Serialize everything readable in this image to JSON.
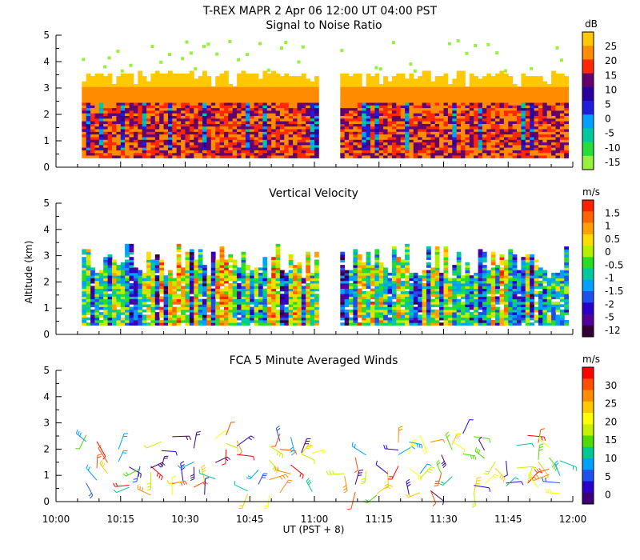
{
  "chart_data": {
    "title": "T-REX  MAPR  2 Apr 06  12:00 UT  04:00  PST",
    "xlabel": "UT  (PST + 8)",
    "x_ticks": [
      "10:00",
      "10:15",
      "10:30",
      "10:45",
      "11:00",
      "11:15",
      "11:30",
      "11:45",
      "12:00"
    ],
    "x_range_minutes": [
      0,
      120
    ],
    "data_gap_minutes": [
      61,
      66
    ],
    "panels": [
      {
        "type": "heatmap",
        "title": "Signal to Noise Ratio",
        "ylabel": "",
        "y_ticks": [
          "0",
          "1",
          "2",
          "3",
          "4",
          "5"
        ],
        "ylim": [
          0,
          5
        ],
        "colorbar_unit": "dB",
        "colorbar_labels": [
          "25",
          "20",
          "15",
          "10",
          "5",
          "0",
          "-5",
          "-10",
          "-15"
        ],
        "colorbar_colors": [
          "#ffc800",
          "#ff8c00",
          "#ff2800",
          "#64006e",
          "#2800a0",
          "#1e1edc",
          "#00a0ff",
          "#00c8a0",
          "#28dc3c",
          "#96f03c"
        ]
      },
      {
        "type": "heatmap",
        "title": "Vertical Velocity",
        "ylabel": "Altitude (km)",
        "y_ticks": [
          "0",
          "1",
          "2",
          "3",
          "4",
          "5"
        ],
        "ylim": [
          0,
          5
        ],
        "colorbar_unit": "m/s",
        "colorbar_labels": [
          "1.5",
          "1",
          "0.5",
          "0",
          "-0.5",
          "-1",
          "-1.5",
          "-2",
          "-5",
          "-12"
        ],
        "colorbar_colors": [
          "#ff2000",
          "#ff6400",
          "#ffa000",
          "#ffdc00",
          "#b4f000",
          "#28dc28",
          "#00c8a0",
          "#00a0ff",
          "#1e50f0",
          "#2800c8",
          "#50009b",
          "#320032"
        ]
      },
      {
        "type": "scatter",
        "title": "FCA 5 Minute Averaged Winds",
        "ylabel": "",
        "y_ticks": [
          "0",
          "1",
          "2",
          "3",
          "4",
          "5"
        ],
        "ylim": [
          0,
          5
        ],
        "colorbar_unit": "m/s",
        "colorbar_labels": [
          "30",
          "25",
          "20",
          "15",
          "10",
          "5",
          "0"
        ],
        "colorbar_colors": [
          "#ff0000",
          "#ff5000",
          "#ff8c00",
          "#ffc800",
          "#ffff00",
          "#c8f000",
          "#50dc00",
          "#00c896",
          "#00a0ff",
          "#1e50f0",
          "#2800c8",
          "#3c007a"
        ]
      }
    ]
  }
}
